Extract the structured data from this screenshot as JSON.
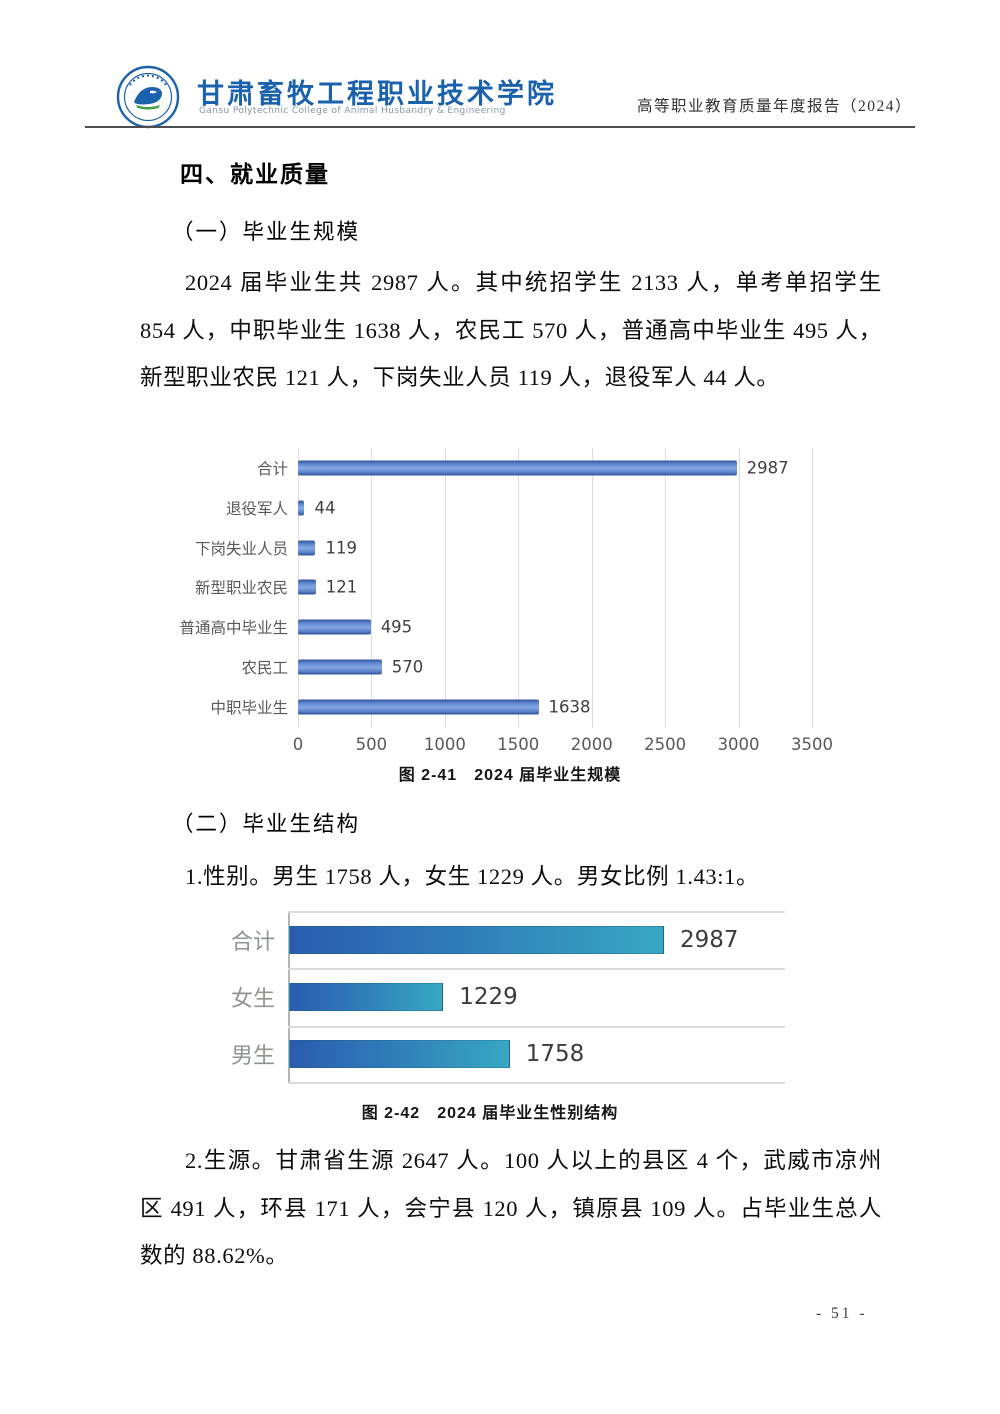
{
  "header": {
    "logo": "college-seal",
    "college_name_cn": "甘肃畜牧工程职业技术学院",
    "college_name_en": "Gansu Polytechnic College of Animal Husbandry & Engineering",
    "report_title": "高等职业教育质量年度报告（2024）"
  },
  "section": {
    "title": "四、就业质量",
    "sub1_title": "（一）毕业生规模",
    "para1": "2024 届毕业生共 2987 人。其中统招学生 2133 人，单考单招学生 854 人，中职毕业生 1638 人，农民工 570 人，普通高中毕业生 495 人，新型职业农民 121 人，下岗失业人员 119 人，退役军人 44 人。",
    "sub2_title": "（二）毕业生结构",
    "para2": "1.性别。男生 1758 人，女生 1229 人。男女比例 1.43:1。",
    "para3": "2.生源。甘肃省生源 2647 人。100 人以上的县区 4 个，武威市凉州区 491 人，环县 171 人，会宁县 120 人，镇原县 109 人。占毕业生总人数的 88.62%。"
  },
  "chart_data": [
    {
      "type": "bar",
      "orientation": "horizontal",
      "title": "图 2-41　2024 届毕业生规模",
      "categories": [
        "合计",
        "退役军人",
        "下岗失业人员",
        "新型职业农民",
        "普通高中毕业生",
        "农民工",
        "中职毕业生"
      ],
      "values": [
        2987,
        44,
        119,
        121,
        495,
        570,
        1638
      ],
      "x_ticks": [
        0,
        500,
        1000,
        1500,
        2000,
        2500,
        3000,
        3500
      ],
      "xlim": [
        0,
        3500
      ],
      "grid": "vertical-gridlines",
      "legend": "none",
      "data_labels": true,
      "bar_color": "#4472C4"
    },
    {
      "type": "bar",
      "orientation": "horizontal",
      "title": "图 2-42　2024 届毕业生性别结构",
      "categories": [
        "合计",
        "女生",
        "男生"
      ],
      "values": [
        2987,
        1229,
        1758
      ],
      "x_ticks": [],
      "grid": "row-separators",
      "legend": "none",
      "data_labels": true,
      "bar_gradient": [
        "#2A5CAE",
        "#38A8C2"
      ]
    }
  ],
  "footer": {
    "page_number": "- 51 -"
  }
}
